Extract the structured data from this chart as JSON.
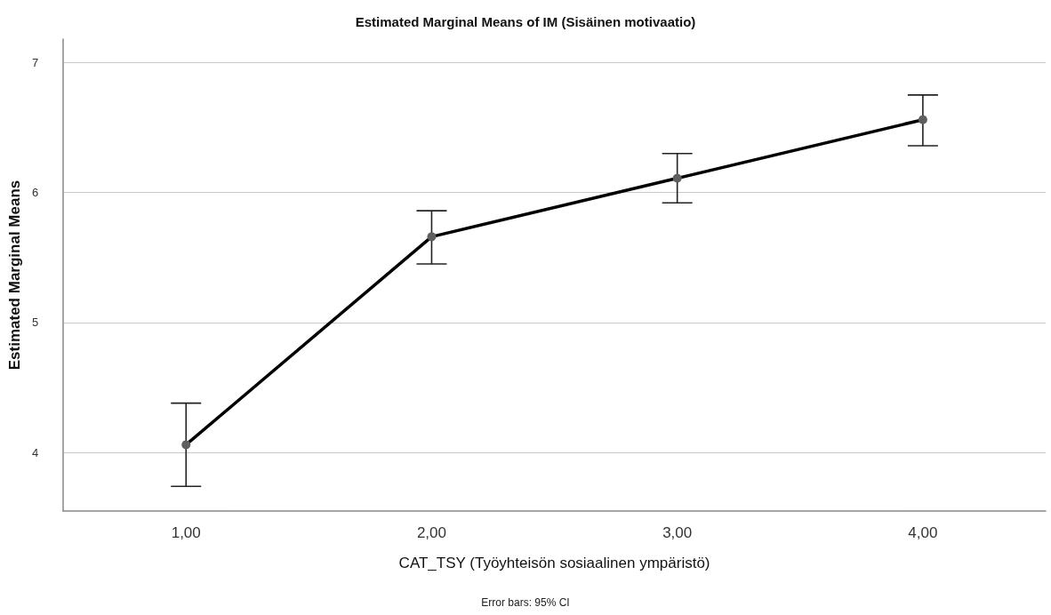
{
  "chart_data": {
    "type": "line",
    "title": "Estimated Marginal Means of IM (Sisäinen motivaatio)",
    "xlabel": "CAT_TSY (Työyhteisön sosiaalinen ympäristö)",
    "ylabel": "Estimated Marginal Means",
    "annotations": [
      "Error bars: 95% CI"
    ],
    "categories": [
      "1,00",
      "2,00",
      "3,00",
      "4,00"
    ],
    "series": [
      {
        "color": "#000000",
        "values": [
          4.06,
          5.66,
          6.11,
          6.56
        ],
        "errors": [
          [
            3.74,
            4.38
          ],
          [
            5.45,
            5.86
          ],
          [
            5.92,
            6.3
          ],
          [
            6.36,
            6.75
          ]
        ]
      }
    ],
    "ylim": [
      3.55,
      7.18
    ],
    "yticks": [
      4,
      5,
      6,
      7
    ],
    "grid": "y",
    "marker": "circle",
    "line_style": "solid"
  }
}
